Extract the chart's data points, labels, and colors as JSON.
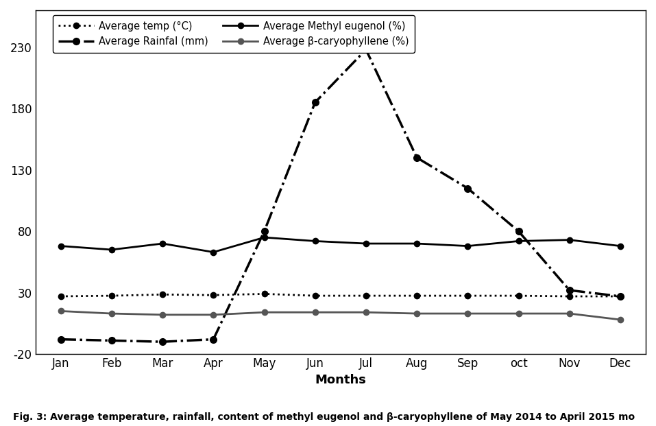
{
  "months": [
    "Jan",
    "Feb",
    "Mar",
    "Apr",
    "May",
    "Jun",
    "Jul",
    "Aug",
    "Sep",
    "oct",
    "Nov",
    "Dec"
  ],
  "avg_temp": [
    27,
    27.5,
    28.5,
    28,
    29,
    27.5,
    27.5,
    27.5,
    27.5,
    27.5,
    27,
    27
  ],
  "avg_rainfall": [
    -8,
    -9,
    -10,
    -8,
    80,
    185,
    228,
    140,
    115,
    80,
    32,
    27
  ],
  "avg_methyl_eugenol": [
    68,
    65,
    70,
    63,
    75,
    72,
    70,
    70,
    68,
    72,
    73,
    68
  ],
  "avg_beta_caryophyllene": [
    15,
    13,
    12,
    12,
    14,
    14,
    14,
    13,
    13,
    13,
    13,
    8
  ],
  "ylim": [
    -20,
    260
  ],
  "yticks": [
    -20,
    30,
    80,
    130,
    180,
    230
  ],
  "xlabel": "Months",
  "caption": "Fig. 3: Average temperature, rainfall, content of methyl eugenol and β-caryophyllene of May 2014 to April 2015 mo",
  "legend_labels": [
    "Average temp (°C)",
    "Average Rainfal (mm)",
    "Average Methyl eugenol (%)",
    "Average β-caryophyllene (%)"
  ],
  "line_color": "#000000",
  "beta_color": "#555555"
}
